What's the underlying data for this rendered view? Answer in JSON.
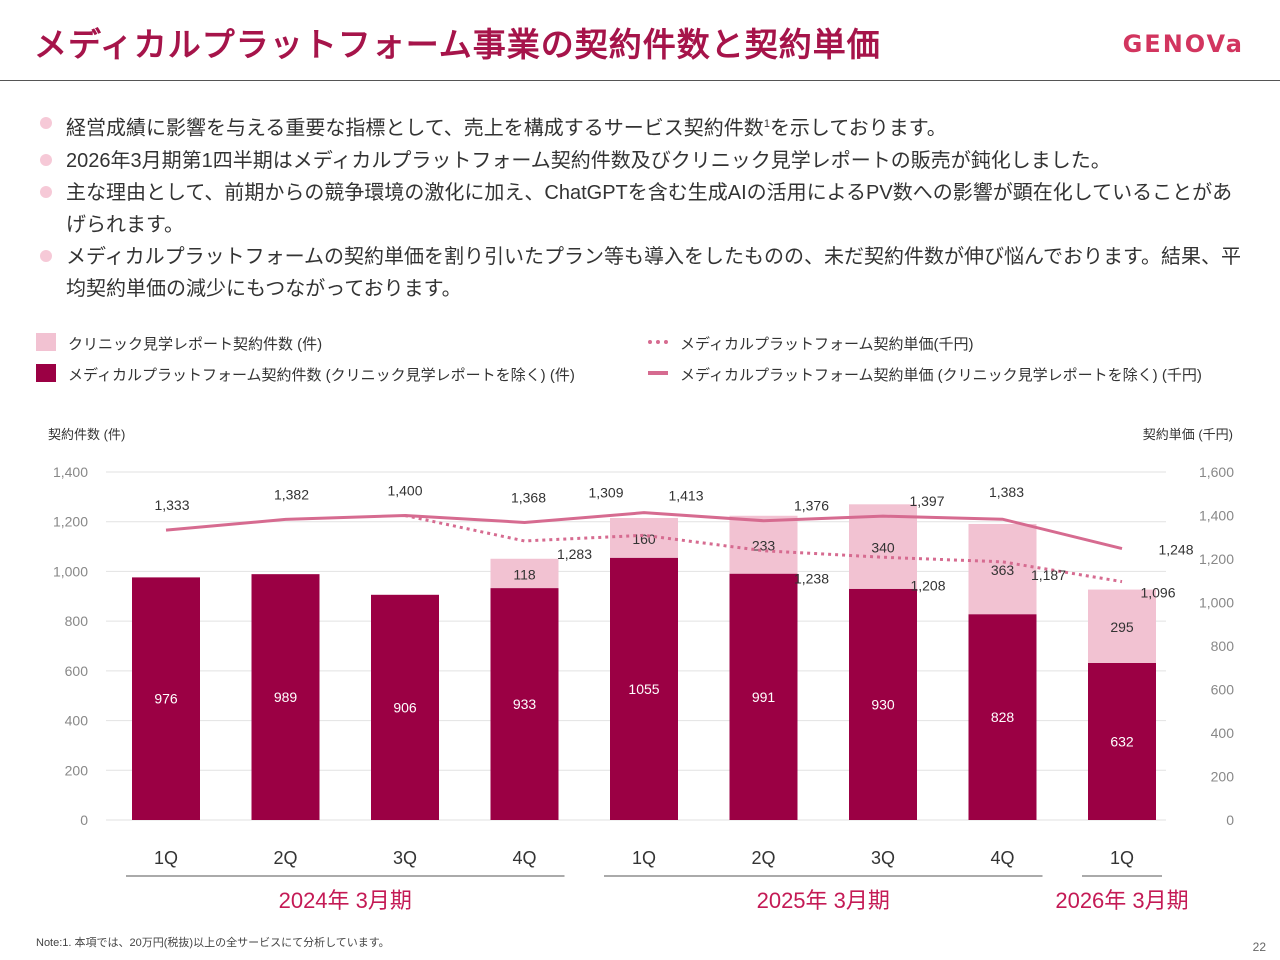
{
  "header": {
    "title": "メディカルプラットフォーム事業の契約件数と契約単価",
    "logo_text": "GENOVa"
  },
  "bullets": [
    {
      "text": "経営成績に影響を与える重要な指標として、売上を構成するサービス契約件数",
      "sup": "1",
      "text_after": "を示しております。"
    },
    {
      "text": "2026年3月期第1四半期はメディカルプラットフォーム契約件数及びクリニック見学レポートの販売が鈍化しました。",
      "sup": "",
      "text_after": ""
    },
    {
      "text": "主な理由として、前期からの競争環境の激化に加え、ChatGPTを含む生成AIの活用によるPV数への影響が顕在化していることがあげられます。",
      "sup": "",
      "text_after": ""
    },
    {
      "text": "メディカルプラットフォームの契約単価を割り引いたプラン等も導入をしたものの、未だ契約件数が伸び悩んでおります。結果、平均契約単価の減少にもつながっております。",
      "sup": "",
      "text_after": ""
    }
  ],
  "legend": {
    "clinic_count": "クリニック見学レポート契約件数 (件)",
    "mp_count": "メディカルプラットフォーム契約件数 (クリニック見学レポートを除く) (件)",
    "mp_price": "メディカルプラットフォーム契約単価(千円)",
    "mp_price_excl": "メディカルプラットフォーム契約単価 (クリニック見学レポートを除く) (千円)"
  },
  "colors": {
    "accent": "#a6144a",
    "bar_dark": "#9b0044",
    "bar_light": "#f2c2d2",
    "line": "#d66b90"
  },
  "chart_data": {
    "type": "bar",
    "ylabel_left": "契約件数 (件)",
    "ylabel_right": "契約単価 (千円)",
    "ylim_left": [
      0,
      1400
    ],
    "yticks_left": [
      0,
      200,
      400,
      600,
      800,
      1000,
      1200,
      1400
    ],
    "ylim_right": [
      0,
      1600
    ],
    "yticks_right": [
      0,
      200,
      400,
      600,
      800,
      1000,
      1200,
      1400,
      1600
    ],
    "categories": [
      "1Q",
      "2Q",
      "3Q",
      "4Q",
      "1Q",
      "2Q",
      "3Q",
      "4Q",
      "1Q"
    ],
    "periods": [
      {
        "label": "2024年 3月期",
        "start": 0,
        "end": 3
      },
      {
        "label": "2025年 3月期",
        "start": 4,
        "end": 7
      },
      {
        "label": "2026年 3月期",
        "start": 8,
        "end": 8
      }
    ],
    "series": [
      {
        "name": "メディカルプラットフォーム契約件数 (クリニック見学レポートを除く) (件)",
        "kind": "bar",
        "values": [
          976,
          989,
          906,
          933,
          1055,
          991,
          930,
          828,
          632
        ]
      },
      {
        "name": "クリニック見学レポート契約件数 (件)",
        "kind": "bar",
        "values": [
          null,
          null,
          null,
          118,
          160,
          233,
          340,
          363,
          295
        ]
      },
      {
        "name": "メディカルプラットフォーム契約単価(千円)",
        "kind": "line-dotted",
        "values": [
          null,
          null,
          1400,
          1283,
          1309,
          1238,
          1208,
          1187,
          1096
        ]
      },
      {
        "name": "メディカルプラットフォーム契約単価 (クリニック見学レポートを除く) (千円)",
        "kind": "line",
        "values": [
          1333,
          1382,
          1400,
          1368,
          1413,
          1376,
          1397,
          1383,
          1248
        ]
      }
    ]
  },
  "footer": {
    "note": "Note:1. 本項では、20万円(税抜)以上の全サービスにて分析しています。",
    "page": "22"
  }
}
